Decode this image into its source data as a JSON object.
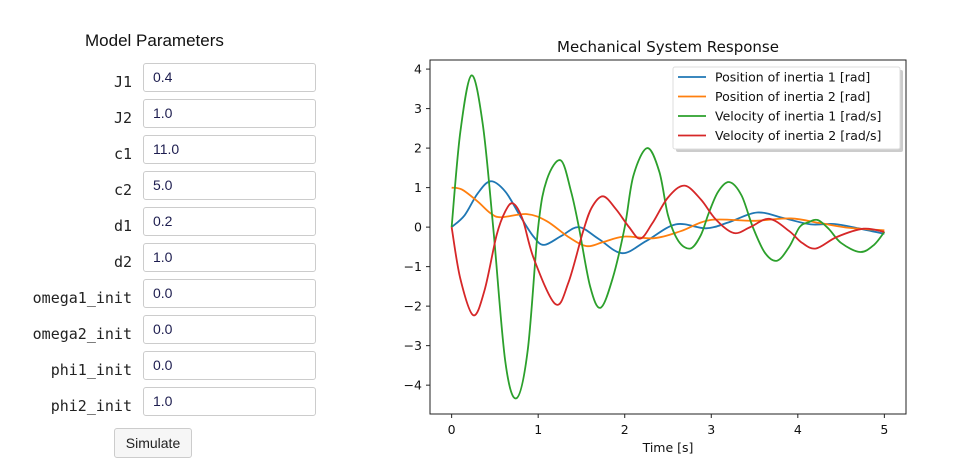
{
  "panel": {
    "title": "Model Parameters",
    "params": [
      {
        "label": "J1",
        "value": "0.4"
      },
      {
        "label": "J2",
        "value": "1.0"
      },
      {
        "label": "c1",
        "value": "11.0"
      },
      {
        "label": "c2",
        "value": "5.0"
      },
      {
        "label": "d1",
        "value": "0.2"
      },
      {
        "label": "d2",
        "value": "1.0"
      },
      {
        "label": "omega1_init",
        "value": "0.0"
      },
      {
        "label": "omega2_init",
        "value": "0.0"
      },
      {
        "label": "phi1_init",
        "value": "0.0"
      },
      {
        "label": "phi2_init",
        "value": "1.0"
      }
    ],
    "simulate_label": "Simulate"
  },
  "chart_data": {
    "type": "line",
    "title": "Mechanical System Response",
    "xlabel": "Time [s]",
    "ylabel": "",
    "xlim": [
      -0.25,
      5.25
    ],
    "ylim": [
      -4.73,
      4.23
    ],
    "xticks": [
      0,
      1,
      2,
      3,
      4,
      5
    ],
    "yticks": [
      -4,
      -3,
      -2,
      -1,
      0,
      1,
      2,
      3,
      4
    ],
    "grid": false,
    "legend_position": "top-right",
    "series": [
      {
        "name": "Position of inertia 1 [rad]",
        "color": "#1f77b4",
        "points": [
          [
            0,
            0
          ],
          [
            0.15,
            0.3
          ],
          [
            0.3,
            0.85
          ],
          [
            0.45,
            1.16
          ],
          [
            0.62,
            0.9
          ],
          [
            0.8,
            0.25
          ],
          [
            0.95,
            -0.25
          ],
          [
            1.07,
            -0.45
          ],
          [
            1.27,
            -0.22
          ],
          [
            1.47,
            0.0
          ],
          [
            1.7,
            -0.3
          ],
          [
            1.97,
            -0.66
          ],
          [
            2.25,
            -0.35
          ],
          [
            2.59,
            0.07
          ],
          [
            2.94,
            -0.03
          ],
          [
            3.2,
            0.12
          ],
          [
            3.53,
            0.37
          ],
          [
            3.85,
            0.22
          ],
          [
            4.15,
            0.07
          ],
          [
            4.42,
            0.08
          ],
          [
            4.7,
            -0.03
          ],
          [
            5,
            -0.17
          ]
        ]
      },
      {
        "name": "Position of inertia 2 [rad]",
        "color": "#ff7f0e",
        "points": [
          [
            0,
            1.0
          ],
          [
            0.12,
            0.95
          ],
          [
            0.3,
            0.65
          ],
          [
            0.45,
            0.35
          ],
          [
            0.57,
            0.25
          ],
          [
            0.87,
            0.33
          ],
          [
            1.1,
            0.15
          ],
          [
            1.35,
            -0.25
          ],
          [
            1.56,
            -0.48
          ],
          [
            1.75,
            -0.38
          ],
          [
            1.99,
            -0.24
          ],
          [
            2.34,
            -0.28
          ],
          [
            2.65,
            -0.1
          ],
          [
            2.99,
            0.18
          ],
          [
            3.49,
            0.16
          ],
          [
            3.92,
            0.22
          ],
          [
            4.26,
            0.1
          ],
          [
            4.6,
            -0.02
          ],
          [
            5,
            -0.08
          ]
        ]
      },
      {
        "name": "Velocity of inertia 1 [rad/s]",
        "color": "#2ca02c",
        "points": [
          [
            0,
            0
          ],
          [
            0.1,
            2.4
          ],
          [
            0.23,
            3.84
          ],
          [
            0.36,
            2.6
          ],
          [
            0.48,
            0
          ],
          [
            0.62,
            -3.4
          ],
          [
            0.75,
            -4.33
          ],
          [
            0.88,
            -3.1
          ],
          [
            1.0,
            0
          ],
          [
            1.1,
            1.2
          ],
          [
            1.26,
            1.69
          ],
          [
            1.38,
            0.9
          ],
          [
            1.47,
            0
          ],
          [
            1.6,
            -1.5
          ],
          [
            1.72,
            -2.04
          ],
          [
            1.86,
            -1.3
          ],
          [
            2.0,
            0
          ],
          [
            2.1,
            1.3
          ],
          [
            2.26,
            2.0
          ],
          [
            2.4,
            1.4
          ],
          [
            2.5,
            0.3
          ],
          [
            2.62,
            -0.35
          ],
          [
            2.76,
            -0.54
          ],
          [
            2.88,
            -0.2
          ],
          [
            2.97,
            0.35
          ],
          [
            3.08,
            0.9
          ],
          [
            3.21,
            1.14
          ],
          [
            3.35,
            0.8
          ],
          [
            3.48,
            0
          ],
          [
            3.62,
            -0.65
          ],
          [
            3.76,
            -0.85
          ],
          [
            3.9,
            -0.5
          ],
          [
            4.02,
            0
          ],
          [
            4.12,
            0.12
          ],
          [
            4.23,
            0.18
          ],
          [
            4.36,
            -0.05
          ],
          [
            4.5,
            -0.4
          ],
          [
            4.72,
            -0.63
          ],
          [
            4.88,
            -0.45
          ],
          [
            5,
            -0.12
          ]
        ]
      },
      {
        "name": "Velocity of inertia 2 [rad/s]",
        "color": "#d62728",
        "points": [
          [
            0,
            0
          ],
          [
            0.1,
            -1.3
          ],
          [
            0.25,
            -2.23
          ],
          [
            0.38,
            -1.6
          ],
          [
            0.52,
            -0.2
          ],
          [
            0.62,
            0.4
          ],
          [
            0.71,
            0.6
          ],
          [
            0.82,
            0.2
          ],
          [
            0.95,
            -0.8
          ],
          [
            1.2,
            -1.95
          ],
          [
            1.35,
            -1.4
          ],
          [
            1.52,
            -0.1
          ],
          [
            1.62,
            0.5
          ],
          [
            1.75,
            0.78
          ],
          [
            1.9,
            0.45
          ],
          [
            2.05,
            0.0
          ],
          [
            2.18,
            -0.29
          ],
          [
            2.32,
            0.1
          ],
          [
            2.5,
            0.75
          ],
          [
            2.69,
            1.05
          ],
          [
            2.88,
            0.7
          ],
          [
            3.05,
            0.2
          ],
          [
            3.26,
            -0.15
          ],
          [
            3.45,
            0.0
          ],
          [
            3.67,
            0.21
          ],
          [
            3.9,
            -0.1
          ],
          [
            4.05,
            -0.4
          ],
          [
            4.21,
            -0.54
          ],
          [
            4.45,
            -0.25
          ],
          [
            4.76,
            -0.04
          ],
          [
            5,
            -0.12
          ]
        ]
      }
    ]
  }
}
